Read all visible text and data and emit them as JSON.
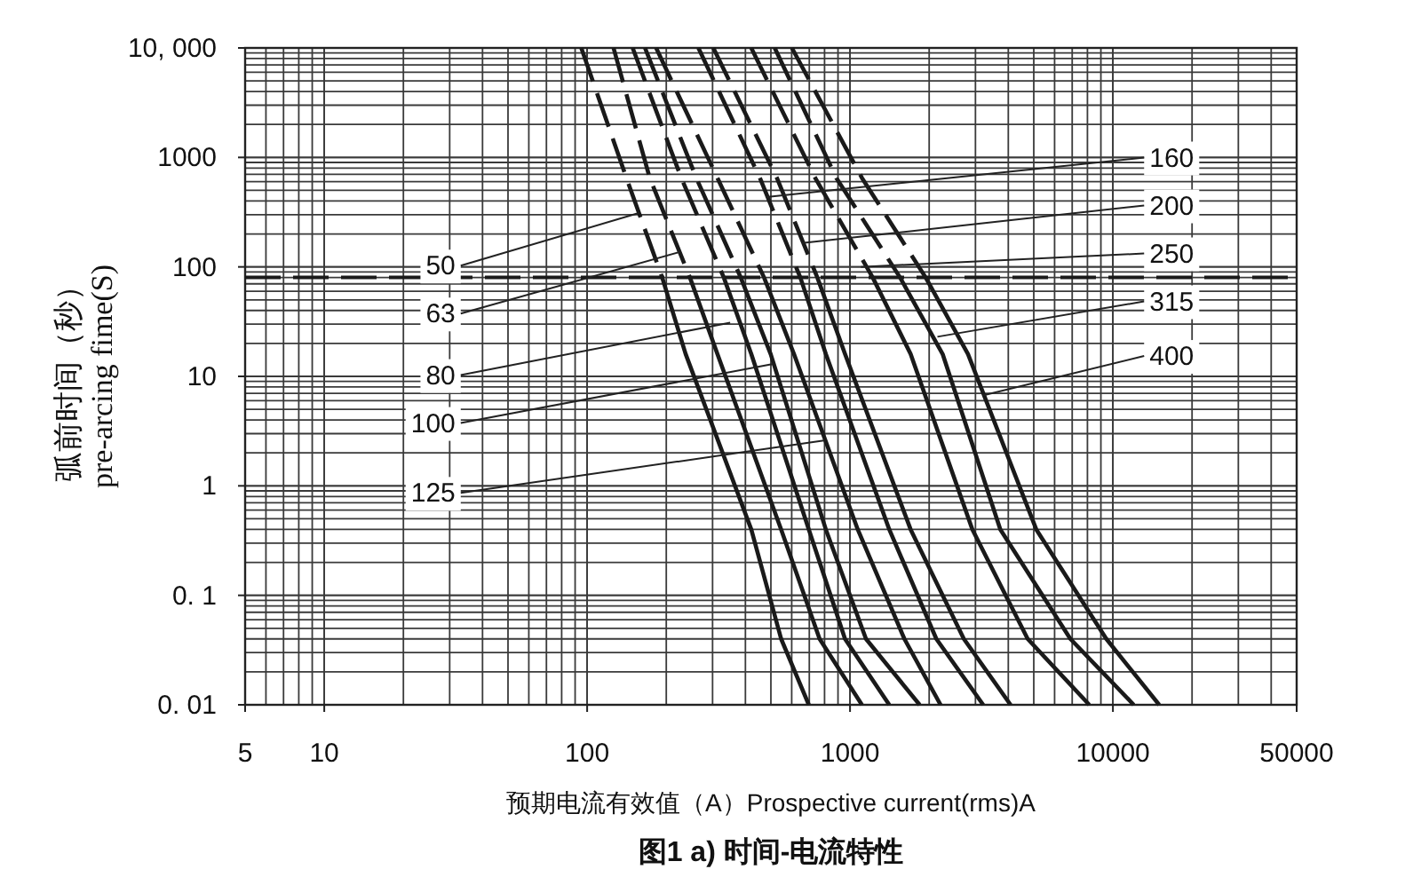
{
  "chart_data": {
    "type": "line",
    "title": "图1 a) 时间-电流特性",
    "xlabel": "预期电流有效值（A）Prospective current(rms)A",
    "ylabel": "弧前时间（秒）\npre-arcing fime(S)",
    "log": "xy",
    "xlim": [
      5,
      50000
    ],
    "ylim": [
      0.01,
      10000
    ],
    "xticks": [
      5,
      10,
      100,
      1000,
      10000,
      50000
    ],
    "yticks": [
      {
        "value": 0.01,
        "label": "0. 01"
      },
      {
        "value": 0.1,
        "label": "0. 1"
      },
      1,
      10,
      100,
      1000,
      {
        "value": 10000,
        "label": "10, 000"
      }
    ],
    "grid": true,
    "line_style": "solid",
    "ref_lines": [
      {
        "axis": "y",
        "value": 80,
        "line_style": "dashed",
        "color": "#1a1a1a"
      }
    ],
    "series": [
      {
        "color": "#1a1a1a",
        "line_style": "dashed",
        "x": [
          95,
          141,
          193
        ],
        "values": [
          10000,
          650,
          80
        ]
      },
      {
        "color": "#1a1a1a",
        "x": [
          193,
          237,
          421,
          547,
          697
        ],
        "values": [
          80,
          16,
          0.4,
          0.04,
          0.01
        ]
      },
      {
        "color": "#1a1a1a",
        "line_style": "dashed",
        "x": [
          126,
          173,
          246
        ],
        "values": [
          10000,
          650,
          80
        ]
      },
      {
        "color": "#1a1a1a",
        "x": [
          246,
          313,
          547,
          766,
          1110
        ],
        "values": [
          80,
          16,
          0.4,
          0.04,
          0.01
        ]
      },
      {
        "color": "#1a1a1a",
        "line_style": "dashed",
        "x": [
          149,
          228,
          331
        ],
        "values": [
          10000,
          650,
          80
        ]
      },
      {
        "color": "#1a1a1a",
        "x": [
          331,
          421,
          697,
          957,
          1410
        ],
        "values": [
          80,
          16,
          0.4,
          0.04,
          0.01
        ]
      },
      {
        "color": "#1a1a1a",
        "line_style": "dashed",
        "x": [
          166,
          260,
          384
        ],
        "values": [
          10000,
          650,
          80
        ]
      },
      {
        "color": "#1a1a1a",
        "x": [
          384,
          499,
          809,
          1150,
          1840
        ],
        "values": [
          80,
          16,
          0.4,
          0.04,
          0.01
        ]
      },
      {
        "color": "#1a1a1a",
        "line_style": "dashed",
        "x": [
          183,
          313,
          471
        ],
        "values": [
          10000,
          650,
          80
        ]
      },
      {
        "color": "#1a1a1a",
        "x": [
          471,
          612,
          1070,
          1610,
          2210
        ],
        "values": [
          80,
          16,
          0.4,
          0.04,
          0.01
        ]
      },
      {
        "color": "#1a1a1a",
        "line_style": "dashed",
        "x": [
          265,
          454,
          647
        ],
        "values": [
          10000,
          650,
          80
        ]
      },
      {
        "color": "#1a1a1a",
        "x": [
          647,
          809,
          1410,
          2130,
          3210
        ],
        "values": [
          80,
          16,
          0.4,
          0.04,
          0.01
        ]
      },
      {
        "color": "#1a1a1a",
        "line_style": "dashed",
        "x": [
          302,
          527,
          751
        ],
        "values": [
          10000,
          650,
          80
        ]
      },
      {
        "color": "#1a1a1a",
        "x": [
          751,
          957,
          1700,
          2710,
          4080
        ],
        "values": [
          80,
          16,
          0.4,
          0.04,
          0.01
        ]
      },
      {
        "color": "#1a1a1a",
        "line_style": "dashed",
        "x": [
          421,
          737,
          1220
        ],
        "values": [
          10000,
          650,
          80
        ]
      },
      {
        "color": "#1a1a1a",
        "x": [
          1220,
          1700,
          2920,
          4740,
          8130
        ],
        "values": [
          80,
          16,
          0.4,
          0.04,
          0.01
        ]
      },
      {
        "color": "#1a1a1a",
        "line_style": "dashed",
        "x": [
          517,
          887,
          1550
        ],
        "values": [
          10000,
          650,
          80
        ]
      },
      {
        "color": "#1a1a1a",
        "x": [
          1550,
          2250,
          3730,
          6890,
          12000
        ],
        "values": [
          80,
          16,
          0.4,
          0.04,
          0.01
        ]
      },
      {
        "color": "#1a1a1a",
        "line_style": "dashed",
        "x": [
          601,
          1110,
          1940
        ],
        "values": [
          10000,
          650,
          80
        ]
      },
      {
        "color": "#1a1a1a",
        "x": [
          1940,
          2810,
          5110,
          9440,
          15000
        ],
        "values": [
          80,
          16,
          0.4,
          0.04,
          0.01
        ]
      }
    ],
    "annotations": [
      {
        "text": "50",
        "x": 157,
        "y": 310
      },
      {
        "text": "63",
        "x": 225,
        "y": 137
      },
      {
        "text": "80",
        "x": 350,
        "y": 31
      },
      {
        "text": "100",
        "x": 510,
        "y": 13
      },
      {
        "text": "125",
        "x": 795,
        "y": 2.6
      },
      {
        "text": "160",
        "x": 480,
        "y": 435
      },
      {
        "text": "200",
        "x": 659,
        "y": 165
      },
      {
        "text": "250",
        "x": 1100,
        "y": 100
      },
      {
        "text": "315",
        "x": 2150,
        "y": 23
      },
      {
        "text": "400",
        "x": 3200,
        "y": 6.7
      }
    ]
  }
}
